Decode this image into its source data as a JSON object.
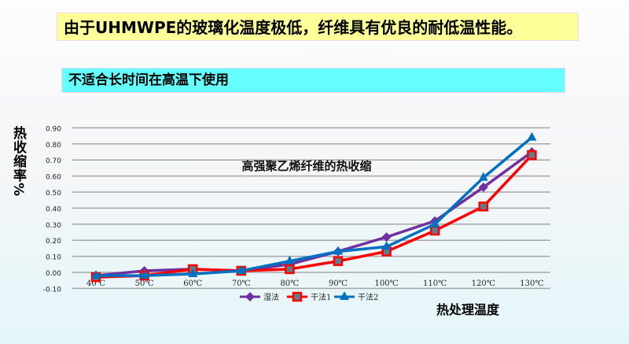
{
  "header": {
    "title": "由于UHMWPE的玻璃化温度极低，纤维具有优良的耐低温性能。",
    "subtitle": "不适合长时间在高温下使用"
  },
  "chart_data": {
    "type": "line",
    "title": "高强聚乙烯纤维的热收缩",
    "xlabel": "热处理温度",
    "ylabel": "热收缩率%",
    "categories": [
      "40℃",
      "50℃",
      "60℃",
      "70℃",
      "80℃",
      "90℃",
      "100℃",
      "110℃",
      "120℃",
      "130℃"
    ],
    "ylim": [
      -0.1,
      0.9
    ],
    "yticks": [
      "0.90",
      "0.80",
      "0.70",
      "0.60",
      "0.50",
      "0.40",
      "0.30",
      "0.20",
      "0.10",
      "0.00",
      "-0.10"
    ],
    "grid": true,
    "legend": "bottom",
    "series": [
      {
        "name": "湿法",
        "color": "#7030a0",
        "marker": "diamond",
        "values": [
          -0.02,
          0.01,
          0.02,
          0.01,
          0.05,
          0.13,
          0.22,
          0.32,
          0.53,
          0.75
        ]
      },
      {
        "name": "干法1",
        "color": "#ff0000",
        "marker": "square",
        "values": [
          -0.03,
          -0.02,
          0.02,
          0.01,
          0.02,
          0.07,
          0.13,
          0.26,
          0.41,
          0.73
        ]
      },
      {
        "name": "干法2",
        "color": "#0070c0",
        "marker": "triangle",
        "values": [
          -0.02,
          -0.02,
          -0.01,
          0.01,
          0.07,
          0.13,
          0.16,
          0.3,
          0.59,
          0.84
        ]
      }
    ]
  }
}
